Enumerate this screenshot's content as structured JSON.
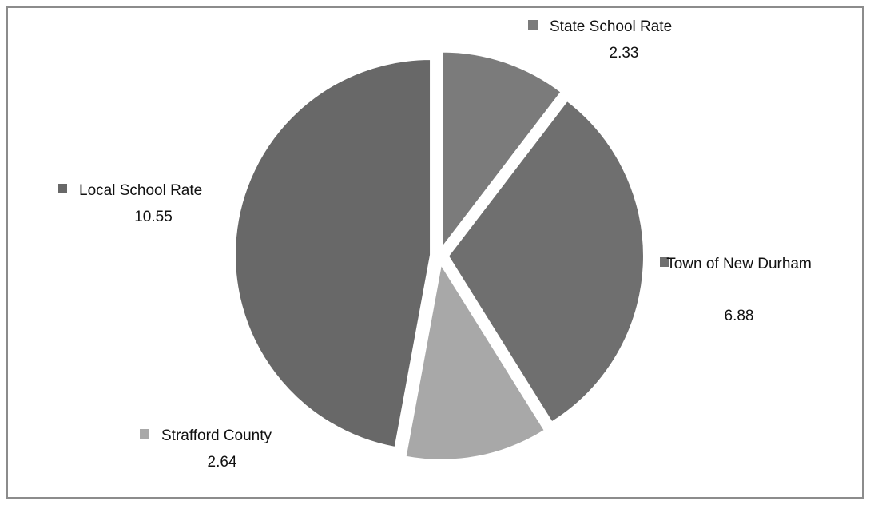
{
  "chart_data": {
    "type": "pie",
    "title": "",
    "labels": [
      "State School Rate",
      "Town of New Durham",
      "Strafford County",
      "Local School Rate"
    ],
    "values": [
      2.33,
      6.88,
      2.64,
      10.55
    ],
    "value_labels": [
      "2.33",
      "6.88",
      "2.64",
      "10.55"
    ],
    "colors": [
      "#7b7b7b",
      "#6f6f6f",
      "#a8a8a8",
      "#686868"
    ],
    "start_angle_deg": 0,
    "direction": "clockwise",
    "exploded": true,
    "legend": "data-labels-with-markers"
  }
}
